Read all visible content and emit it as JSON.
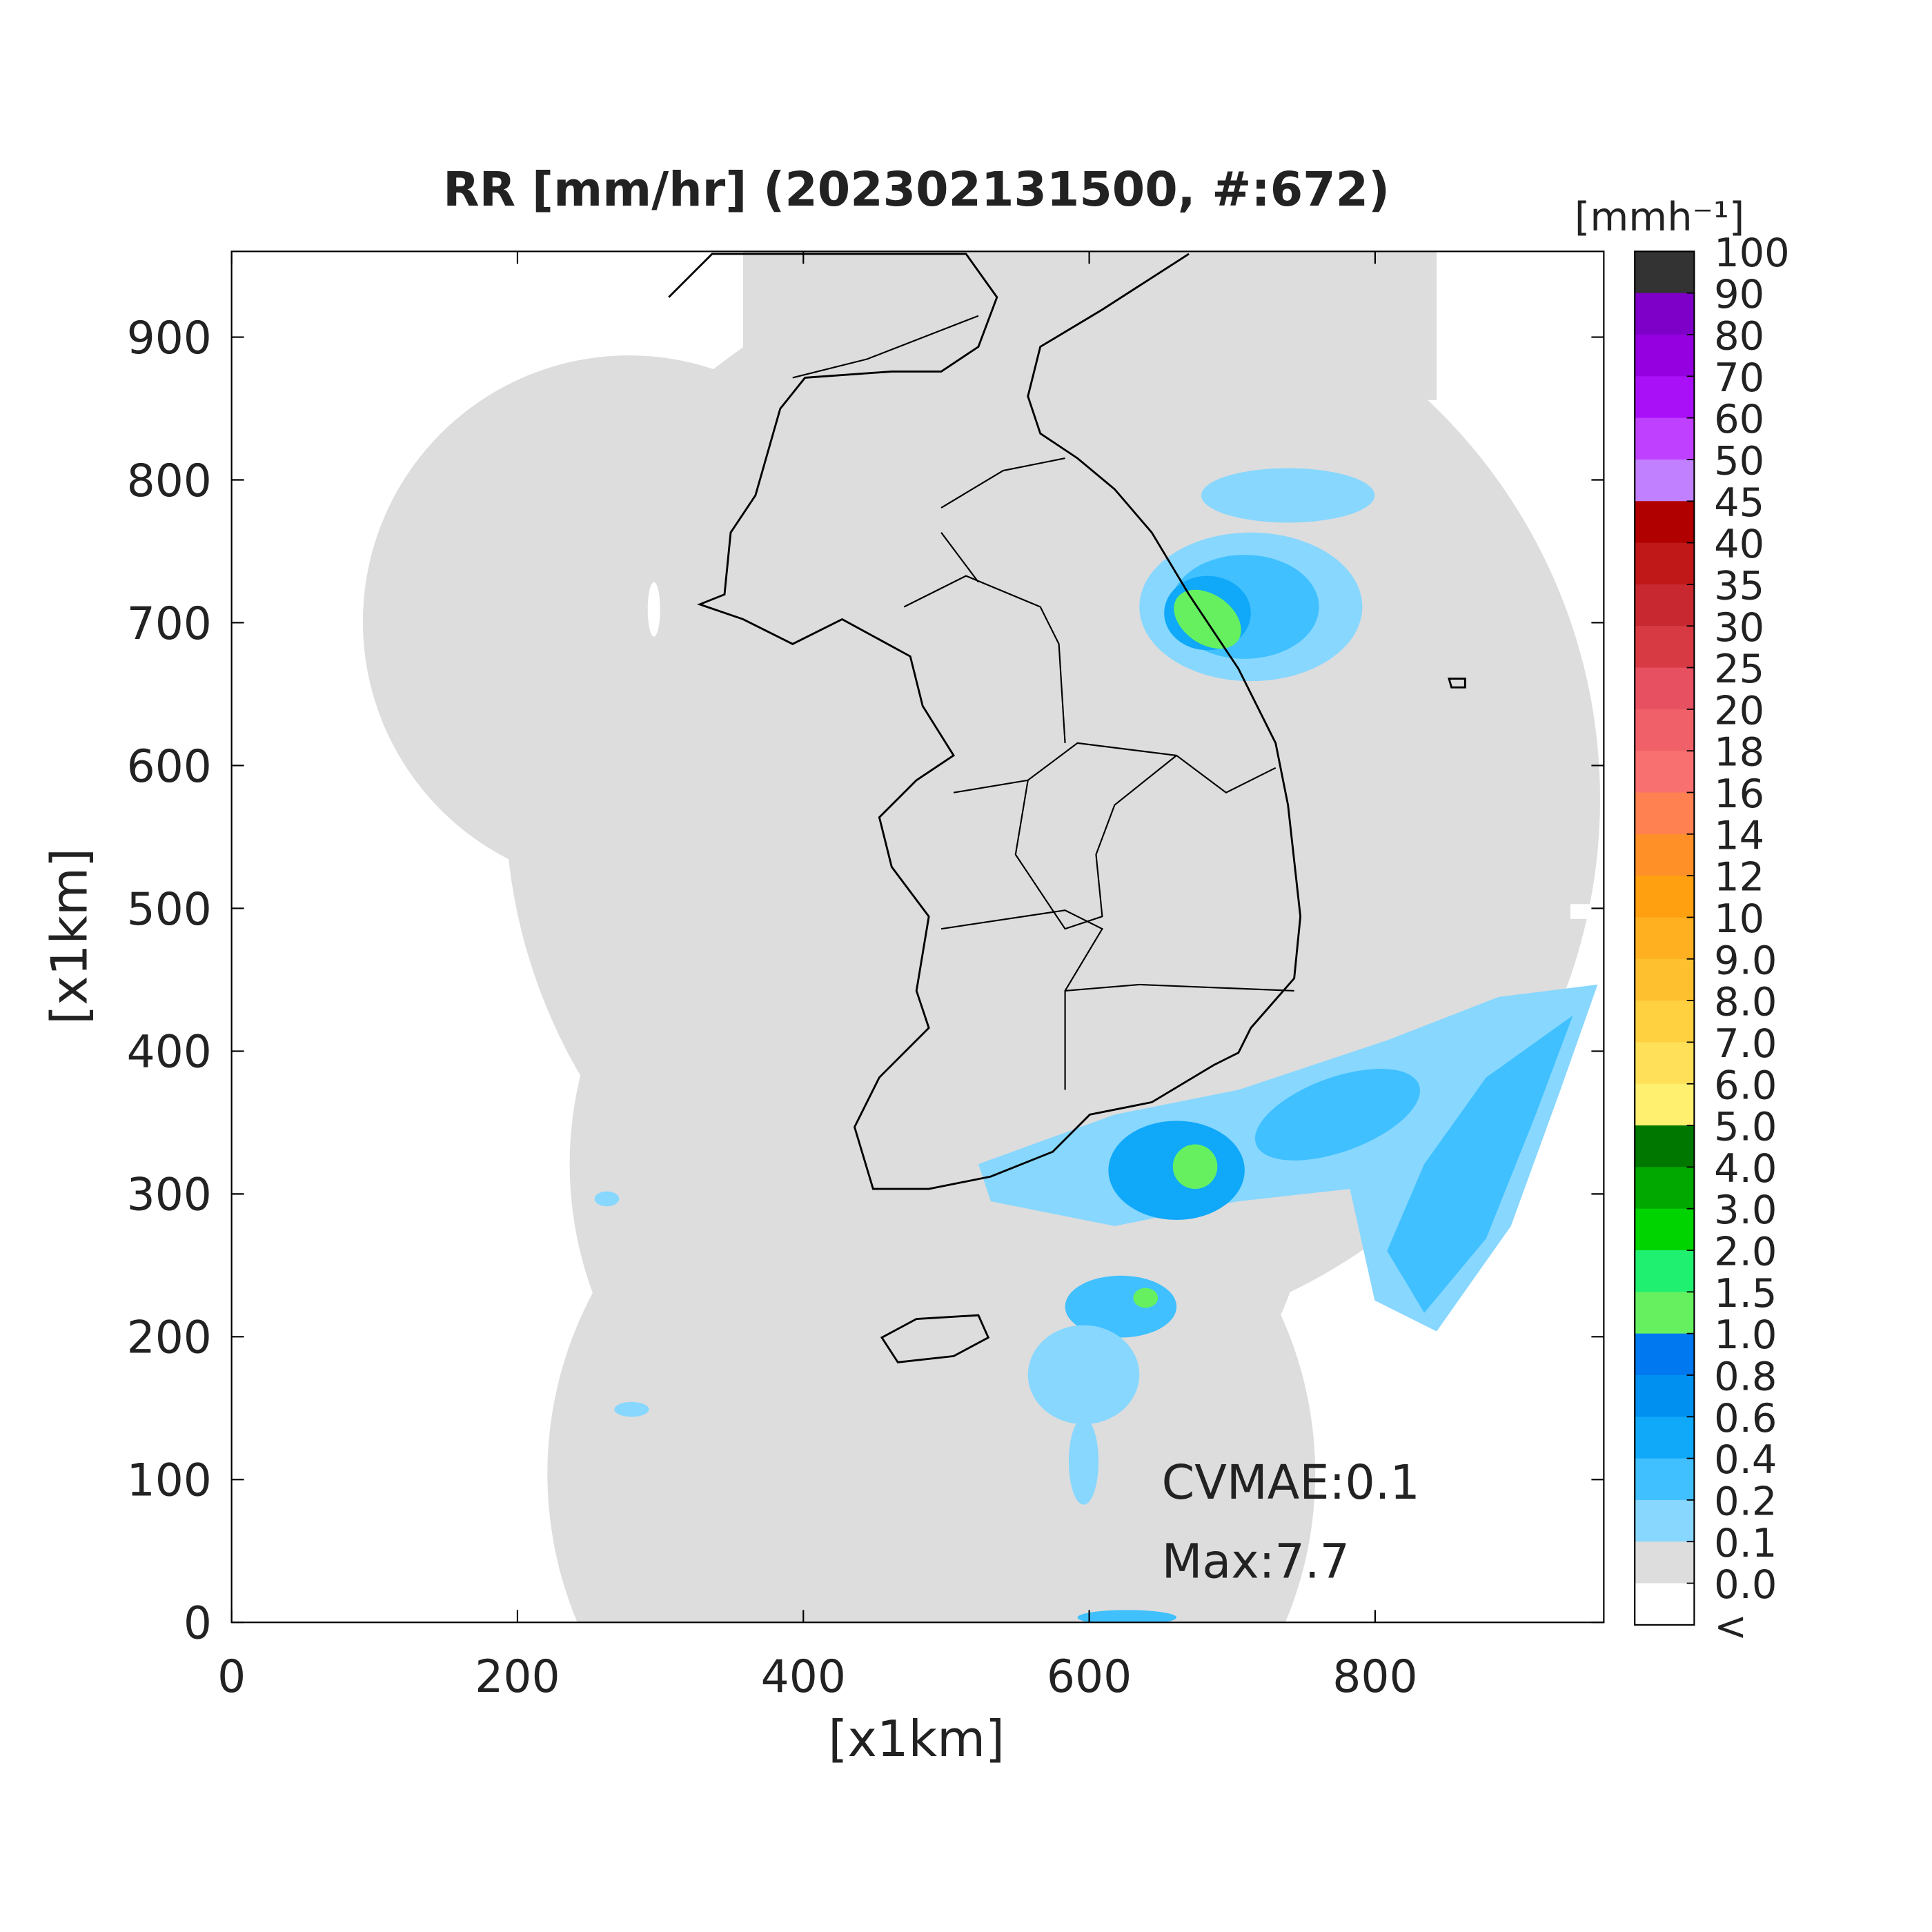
{
  "chart_data": {
    "type": "map",
    "title": "RR [mm/hr] (202302131500, #:672)",
    "x_label": "[x1km]",
    "y_label": "[x1km]",
    "xlim": [
      0,
      960
    ],
    "ylim": [
      0,
      960
    ],
    "xticks": [
      0,
      200,
      400,
      600,
      800
    ],
    "yticks": [
      0,
      100,
      200,
      300,
      400,
      500,
      600,
      700,
      800,
      900
    ],
    "annotations": [
      "CVMAE:0.1",
      "Max:7.7"
    ],
    "colorbar": {
      "title": "[mmh⁻¹]",
      "ticks": [
        100,
        90,
        80,
        70,
        60,
        50,
        45,
        40,
        35,
        30,
        25,
        20,
        18,
        16,
        14,
        12,
        10,
        {
          "value": 9,
          "label": "9.0"
        },
        {
          "value": 8,
          "label": "8.0"
        },
        {
          "value": 7,
          "label": "7.0"
        },
        {
          "value": 6,
          "label": "6.0"
        },
        {
          "value": 5,
          "label": "5.0"
        },
        {
          "value": 4,
          "label": "4.0"
        },
        {
          "value": 3,
          "label": "3.0"
        },
        {
          "value": 2,
          "label": "2.0"
        },
        1.5,
        {
          "value": 1,
          "label": "1.0"
        },
        0.8,
        0.6,
        0.4,
        0.2,
        0.1,
        {
          "value": 0,
          "label": "0.0"
        },
        "<"
      ],
      "colors": [
        "#333333",
        "#7e00c8",
        "#9400e0",
        "#aa10f8",
        "#c040ff",
        "#c080ff",
        "#b00000",
        "#c01818",
        "#c82830",
        "#d83a44",
        "#e65060",
        "#f06068",
        "#f87070",
        "#ff8050",
        "#ff9028",
        "#ffa010",
        "#ffb020",
        "#ffc030",
        "#ffd040",
        "#ffe058",
        "#fff070",
        "#007800",
        "#00a800",
        "#00d400",
        "#20f070",
        "#66f060",
        "#0078f0",
        "#0090f0",
        "#10a8f8",
        "#40c0ff",
        "#87d7ff",
        "#dddddd",
        "#ffffff"
      ]
    }
  }
}
